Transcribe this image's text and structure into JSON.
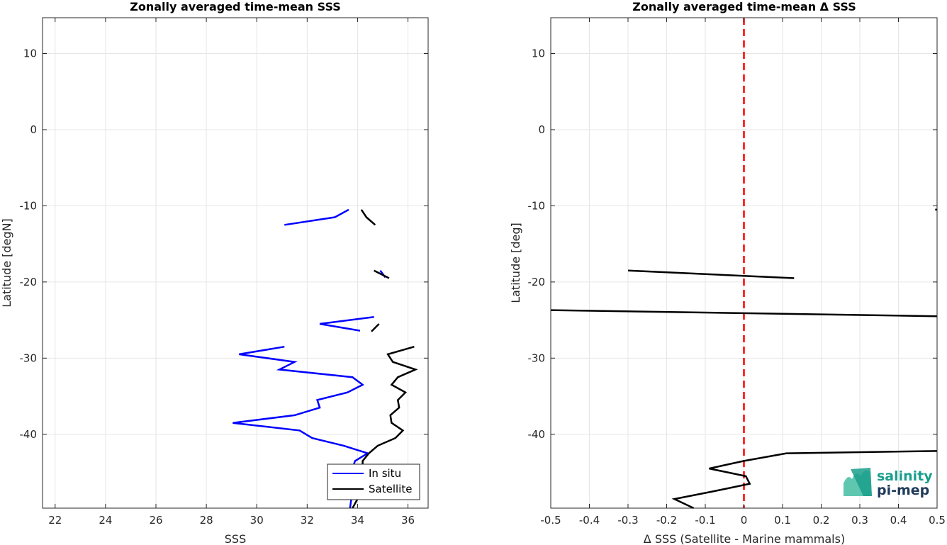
{
  "chart_data": [
    {
      "type": "line",
      "title": "Zonally averaged time-mean SSS",
      "xlabel": "SSS",
      "ylabel": "Latitude [degN]",
      "xlim": [
        21.5,
        36.8
      ],
      "ylim": [
        -49.7,
        14.7
      ],
      "xticks": [
        22,
        24,
        26,
        28,
        30,
        32,
        34,
        36
      ],
      "yticks": [
        10,
        0,
        -10,
        -20,
        -30,
        -40
      ],
      "grid": true,
      "legend": {
        "position": "bottom-right",
        "entries": [
          "In situ",
          "Satellite"
        ]
      },
      "series": [
        {
          "name": "In situ",
          "color": "#0000ff",
          "segments": [
            [
              [
                33.65,
                -10.5
              ],
              [
                33.1,
                -11.5
              ],
              [
                31.1,
                -12.5
              ]
            ],
            [
              [
                34.9,
                -18.5
              ],
              [
                35.1,
                -19.4
              ]
            ],
            [
              [
                34.65,
                -24.6
              ],
              [
                32.5,
                -25.5
              ],
              [
                34.1,
                -26.4
              ]
            ],
            [
              [
                31.1,
                -28.5
              ],
              [
                29.3,
                -29.5
              ],
              [
                31.5,
                -30.5
              ],
              [
                30.9,
                -31.5
              ],
              [
                33.8,
                -32.5
              ],
              [
                34.2,
                -33.5
              ],
              [
                33.6,
                -34.5
              ],
              [
                32.4,
                -35.5
              ],
              [
                32.5,
                -36.5
              ],
              [
                31.5,
                -37.5
              ],
              [
                29.05,
                -38.5
              ],
              [
                31.7,
                -39.5
              ],
              [
                32.2,
                -40.5
              ],
              [
                33.45,
                -41.5
              ],
              [
                34.4,
                -42.5
              ],
              [
                33.9,
                -43.5
              ],
              [
                33.8,
                -44.5
              ],
              [
                33.8,
                -45.5
              ],
              [
                33.8,
                -46.5
              ],
              [
                33.8,
                -47.5
              ],
              [
                33.75,
                -48.5
              ],
              [
                33.7,
                -49.7
              ]
            ]
          ]
        },
        {
          "name": "Satellite",
          "color": "#000000",
          "segments": [
            [
              [
                34.15,
                -10.5
              ],
              [
                34.35,
                -11.5
              ],
              [
                34.7,
                -12.5
              ]
            ],
            [
              [
                34.65,
                -18.5
              ],
              [
                35.25,
                -19.5
              ]
            ],
            [
              [
                34.85,
                -25.5
              ],
              [
                34.55,
                -26.5
              ]
            ],
            [
              [
                36.25,
                -28.5
              ],
              [
                35.2,
                -29.5
              ],
              [
                35.4,
                -30.5
              ],
              [
                36.3,
                -31.5
              ],
              [
                35.6,
                -32.5
              ],
              [
                35.35,
                -33.5
              ],
              [
                35.9,
                -34.5
              ],
              [
                35.6,
                -35.5
              ],
              [
                35.65,
                -36.5
              ],
              [
                35.3,
                -37.5
              ],
              [
                35.35,
                -38.5
              ],
              [
                35.8,
                -39.5
              ],
              [
                35.5,
                -40.5
              ],
              [
                34.8,
                -41.5
              ],
              [
                34.45,
                -42.5
              ],
              [
                34.2,
                -43.5
              ],
              [
                34.2,
                -44.5
              ],
              [
                34.15,
                -45.5
              ],
              [
                34.15,
                -46.5
              ],
              [
                34.15,
                -47.5
              ],
              [
                34.0,
                -48.5
              ],
              [
                33.8,
                -49.7
              ]
            ]
          ]
        }
      ]
    },
    {
      "type": "line",
      "title": "Zonally averaged time-mean Δ SSS",
      "xlabel": "Δ SSS (Satellite - Marine mammals)",
      "ylabel": "Latitude [deg]",
      "xlim": [
        -0.5,
        0.5
      ],
      "ylim": [
        -49.7,
        14.7
      ],
      "xticks": [
        -0.5,
        -0.4,
        -0.3,
        -0.2,
        -0.1,
        0,
        0.1,
        0.2,
        0.3,
        0.4,
        0.5
      ],
      "yticks": [
        10,
        0,
        -10,
        -20,
        -30,
        -40
      ],
      "grid": true,
      "zero_line": {
        "x": 0,
        "color": "#ff0000",
        "style": "dashed"
      },
      "series": [
        {
          "name": "",
          "color": "#000000",
          "segments": [
            [
              [
                0.495,
                -10.5
              ],
              [
                0.5,
                -10.5
              ]
            ],
            [
              [
                -0.3,
                -18.5
              ],
              [
                0.13,
                -19.5
              ]
            ],
            [
              [
                -0.5,
                -23.7
              ],
              [
                0.5,
                -24.5
              ]
            ],
            [
              [
                0.5,
                -42.2
              ],
              [
                0.11,
                -42.5
              ],
              [
                0.0,
                -43.5
              ],
              [
                -0.09,
                -44.5
              ],
              [
                0.005,
                -45.5
              ],
              [
                0.015,
                -46.5
              ],
              [
                -0.08,
                -47.5
              ],
              [
                -0.18,
                -48.5
              ],
              [
                -0.13,
                -49.7
              ]
            ]
          ]
        }
      ]
    }
  ],
  "logo": {
    "line1": "salinity",
    "line2": "pi-mep"
  }
}
